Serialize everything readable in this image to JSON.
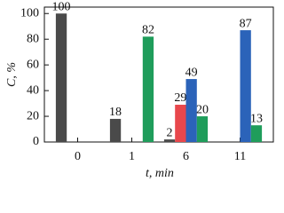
{
  "chart_data": {
    "type": "bar",
    "categories": [
      "0",
      "1",
      "6",
      "11"
    ],
    "series": [
      {
        "color": "#4a4a4a",
        "values": [
          100,
          18,
          2,
          null
        ]
      },
      {
        "color": "#e8474c",
        "values": [
          null,
          null,
          29,
          null
        ]
      },
      {
        "color": "#2b63b9",
        "values": [
          null,
          null,
          49,
          87
        ]
      },
      {
        "color": "#1f9d5b",
        "values": [
          null,
          82,
          20,
          13
        ]
      }
    ],
    "ylim": [
      0,
      105
    ],
    "yticks": [
      0,
      20,
      40,
      60,
      80,
      100
    ],
    "ylabel": "C, %",
    "xlabel": "t, min",
    "value_labels_shown": true
  }
}
